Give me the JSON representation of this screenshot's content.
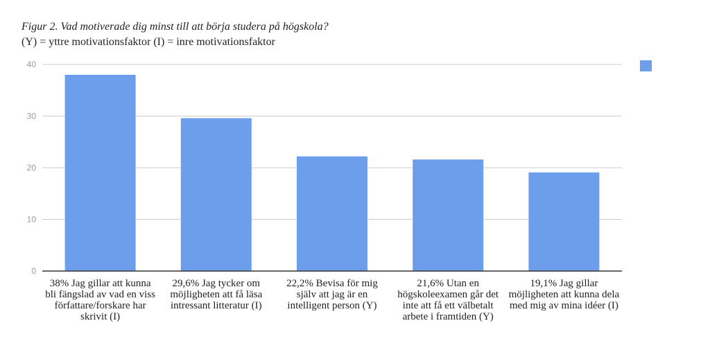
{
  "chart_data": {
    "type": "bar",
    "title": "Figur 2. Vad motiverade dig minst till att börja studera på högskola?",
    "subtitle": "(Y) = yttre motivationsfaktor (I) = inre motivationsfaktor",
    "categories": [
      "38% Jag gillar att kunna bli fängslad av vad en viss författare/forskare har skrivit (I)",
      "29,6% Jag tycker om möjligheten att få läsa intressant litteratur (I)",
      "22,2% Bevisa för mig själv att jag är en intelligent person (Y)",
      "21,6% Utan en högskoleexamen går det inte att få ett välbetalt arbete i framtiden (Y)",
      "19,1% Jag gillar möjligheten att kunna dela med mig av mina idéer (I)"
    ],
    "values": [
      38,
      29.6,
      22.2,
      21.6,
      19.1
    ],
    "ylim": [
      0,
      40
    ],
    "yticks": [
      0,
      10,
      20,
      30,
      40
    ],
    "grid": true,
    "legend": "top-right",
    "bar_color": "#6d9eeb",
    "xlabel": "",
    "ylabel": ""
  }
}
